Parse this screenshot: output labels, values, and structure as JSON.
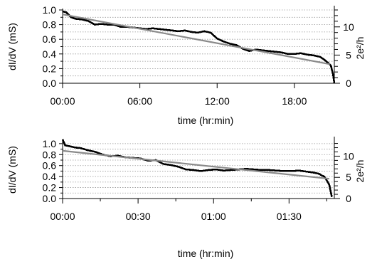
{
  "chart_data": [
    {
      "type": "line",
      "xlabel": "time (hr:min)",
      "ylabel": "dI/dV (mS)",
      "y2label": "2e²/h",
      "x_unit": "hr:min",
      "xlim": [
        "00:00",
        "21:06"
      ],
      "ylim": [
        0,
        1.0
      ],
      "y2lim": [
        0,
        13.0
      ],
      "x_ticks": [
        "00:00",
        "06:00",
        "12:00",
        "18:00"
      ],
      "y_ticks": [
        "0.0",
        "0.2",
        "0.4",
        "0.6",
        "0.8",
        "1.0"
      ],
      "y2_ticks": [
        "0",
        "5",
        "10"
      ],
      "grid": "horizontal dotted",
      "series": [
        {
          "style": "measured",
          "color": "#000000",
          "x": [
            "00:00",
            "00:16",
            "00:40",
            "01:00",
            "01:30",
            "02:00",
            "02:30",
            "03:00",
            "03:30",
            "04:00",
            "04:30",
            "05:00",
            "05:30",
            "06:00",
            "06:30",
            "07:00",
            "07:30",
            "08:00",
            "08:30",
            "09:00",
            "09:30",
            "10:00",
            "10:30",
            "11:00",
            "11:30",
            "12:00",
            "12:30",
            "13:00",
            "13:30",
            "14:00",
            "14:30",
            "15:00",
            "15:30",
            "16:00",
            "16:30",
            "17:00",
            "17:30",
            "18:00",
            "18:30",
            "19:00",
            "19:30",
            "20:00",
            "20:20",
            "20:40",
            "20:50",
            "21:00",
            "21:06"
          ],
          "y": [
            0.98,
            0.97,
            0.9,
            0.88,
            0.87,
            0.85,
            0.8,
            0.81,
            0.8,
            0.8,
            0.77,
            0.77,
            0.76,
            0.75,
            0.74,
            0.75,
            0.74,
            0.73,
            0.72,
            0.71,
            0.72,
            0.7,
            0.69,
            0.71,
            0.69,
            0.61,
            0.57,
            0.54,
            0.52,
            0.47,
            0.44,
            0.46,
            0.45,
            0.44,
            0.43,
            0.42,
            0.4,
            0.4,
            0.41,
            0.39,
            0.38,
            0.36,
            0.32,
            0.27,
            0.24,
            0.12,
            0.0
          ]
        },
        {
          "style": "linear fit",
          "color": "#8a8a8a",
          "x": [
            "00:00",
            "20:45"
          ],
          "y": [
            0.94,
            0.26
          ]
        }
      ]
    },
    {
      "type": "line",
      "xlabel": "time (hr:min)",
      "ylabel": "dI/dV (mS)",
      "y2label": "2e²/h",
      "x_unit": "hr:min",
      "xlim": [
        "00:00",
        "01:48"
      ],
      "ylim": [
        0,
        1.05
      ],
      "y2lim": [
        0,
        13.6
      ],
      "x_ticks": [
        "00:00",
        "00:30",
        "01:00",
        "01:30"
      ],
      "y_ticks": [
        "0.0",
        "0.2",
        "0.4",
        "0.6",
        "0.8",
        "1.0"
      ],
      "y2_ticks": [
        "0",
        "5",
        "10"
      ],
      "grid": "horizontal dotted",
      "series": [
        {
          "style": "measured",
          "color": "#000000",
          "x": [
            "00:00",
            "00:01",
            "00:03",
            "00:05",
            "00:07",
            "00:10",
            "00:13",
            "00:16",
            "00:19",
            "00:22",
            "00:25",
            "00:28",
            "00:31",
            "00:34",
            "00:37",
            "00:40",
            "00:43",
            "00:46",
            "00:49",
            "00:52",
            "00:55",
            "00:58",
            "01:01",
            "01:04",
            "01:07",
            "01:10",
            "01:13",
            "01:16",
            "01:19",
            "01:22",
            "01:25",
            "01:28",
            "01:31",
            "01:34",
            "01:37",
            "01:40",
            "01:42",
            "01:43",
            "01:44",
            "01:45",
            "01:46",
            "01:47"
          ],
          "y": [
            1.08,
            0.97,
            0.95,
            0.93,
            0.92,
            0.88,
            0.85,
            0.8,
            0.77,
            0.78,
            0.75,
            0.74,
            0.73,
            0.69,
            0.7,
            0.63,
            0.61,
            0.58,
            0.53,
            0.52,
            0.5,
            0.52,
            0.53,
            0.51,
            0.52,
            0.53,
            0.54,
            0.53,
            0.52,
            0.52,
            0.51,
            0.5,
            0.5,
            0.51,
            0.49,
            0.47,
            0.45,
            0.42,
            0.4,
            0.33,
            0.25,
            0.03
          ]
        },
        {
          "style": "linear fit",
          "color": "#8a8a8a",
          "x": [
            "00:00",
            "01:46"
          ],
          "y": [
            0.87,
            0.36
          ]
        }
      ]
    }
  ]
}
